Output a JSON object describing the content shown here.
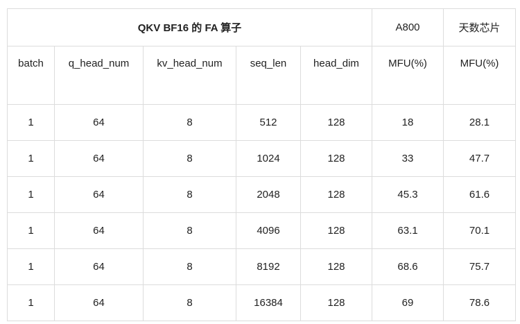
{
  "table": {
    "title": "QKV BF16 的 FA 算子",
    "group_headers": [
      "A800",
      "天数芯片"
    ],
    "columns": [
      "batch",
      "q_head_num",
      "kv_head_num",
      "seq_len",
      "head_dim",
      "MFU(%)",
      "MFU(%)"
    ],
    "rows": [
      [
        "1",
        "64",
        "8",
        "512",
        "128",
        "18",
        "28.1"
      ],
      [
        "1",
        "64",
        "8",
        "1024",
        "128",
        "33",
        "47.7"
      ],
      [
        "1",
        "64",
        "8",
        "2048",
        "128",
        "45.3",
        "61.6"
      ],
      [
        "1",
        "64",
        "8",
        "4096",
        "128",
        "63.1",
        "70.1"
      ],
      [
        "1",
        "64",
        "8",
        "8192",
        "128",
        "68.6",
        "75.7"
      ],
      [
        "1",
        "64",
        "8",
        "16384",
        "128",
        "69",
        "78.6"
      ]
    ]
  }
}
